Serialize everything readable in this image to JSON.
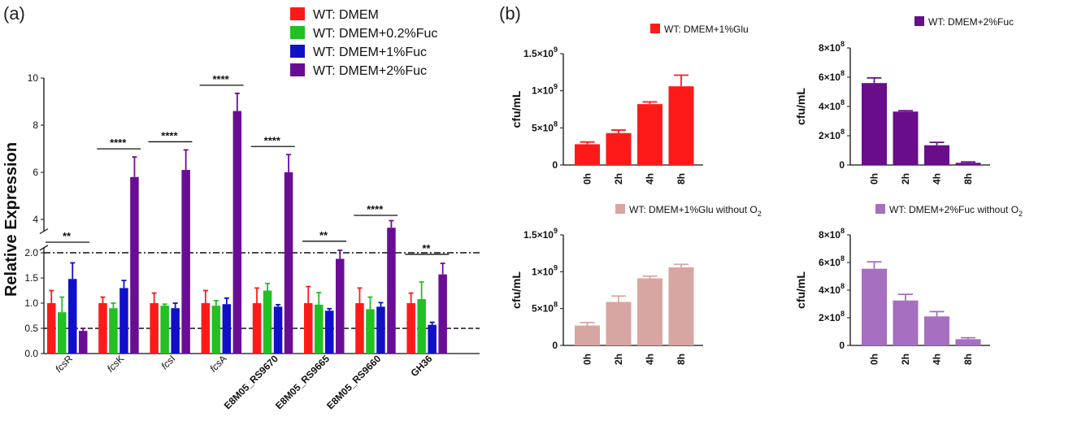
{
  "panels": {
    "a": "(a)",
    "b": "(b)"
  },
  "chart_data": [
    {
      "id": "a",
      "type": "bar",
      "ylabel": "Relative Expression",
      "axis_break": {
        "lower": [
          0,
          2.1
        ],
        "upper": [
          3.5,
          10
        ]
      },
      "yticks_lower": [
        "0.0",
        "0.5",
        "1.0",
        "1.5",
        "2.0"
      ],
      "yticks_upper": [
        "4",
        "6",
        "8",
        "10"
      ],
      "reference_lines": [
        0.5,
        2.0
      ],
      "categories": [
        {
          "prefix": "fcs",
          "suffix": "R"
        },
        {
          "prefix": "fcs",
          "suffix": "K"
        },
        {
          "prefix": "fcs",
          "suffix": "I"
        },
        {
          "prefix": "fcs",
          "suffix": "A"
        },
        {
          "prefix": "",
          "suffix": "E8M05_RS9670"
        },
        {
          "prefix": "",
          "suffix": "E8M05_RS9665"
        },
        {
          "prefix": "",
          "suffix": "E8M05_RS9660"
        },
        {
          "prefix": "",
          "suffix": "GH36"
        }
      ],
      "series": [
        {
          "name": "WT: DMEM",
          "color": "#ff1a1a",
          "values": [
            1.0,
            1.0,
            1.0,
            1.0,
            1.0,
            1.0,
            1.0,
            1.0
          ],
          "errors": [
            0.25,
            0.12,
            0.2,
            0.25,
            0.3,
            0.33,
            0.3,
            0.2
          ]
        },
        {
          "name": "WT: DMEM+0.2%Fuc",
          "color": "#22c022",
          "values": [
            0.82,
            0.9,
            0.95,
            0.95,
            1.25,
            0.97,
            0.88,
            1.08
          ],
          "errors": [
            0.3,
            0.1,
            0.03,
            0.1,
            0.14,
            0.24,
            0.24,
            0.34
          ]
        },
        {
          "name": "WT: DMEM+1%Fuc",
          "color": "#1010c8",
          "values": [
            1.48,
            1.3,
            0.9,
            0.98,
            0.93,
            0.85,
            0.93,
            0.57
          ]
        },
        {
          "name": "WT: DMEM+2%Fuc",
          "color": "#6a0d96",
          "values": [
            0.45,
            5.8,
            6.1,
            8.6,
            6.0,
            1.88,
            3.65,
            1.57
          ]
        }
      ],
      "errors_s3": [
        0.32,
        0.15,
        0.1,
        0.12,
        0.04,
        0.04,
        0.08,
        0.05
      ],
      "errors_s4": [
        0.05,
        0.85,
        0.85,
        0.75,
        0.75,
        0.17,
        0.3,
        0.22
      ],
      "significance": [
        "**",
        "****",
        "****",
        "****",
        "****",
        "**",
        "****",
        "**"
      ]
    },
    {
      "id": "b1",
      "type": "bar",
      "legend": "WT: DMEM+1%Glu",
      "color": "#ff1a1a",
      "ylabel": "cfu/mL",
      "categories": [
        "0h",
        "2h",
        "4h",
        "8h"
      ],
      "values": [
        280000000.0,
        430000000.0,
        820000000.0,
        1060000000.0
      ],
      "errors": [
        30000000.0,
        40000000.0,
        30000000.0,
        150000000.0
      ],
      "ylim": [
        0,
        1500000000.0
      ],
      "yticks": [
        {
          "m": "0",
          "e": ""
        },
        {
          "m": "5×10",
          "e": "8"
        },
        {
          "m": "1×10",
          "e": "9"
        },
        {
          "m": "1.5×10",
          "e": "9"
        }
      ]
    },
    {
      "id": "b2",
      "type": "bar",
      "legend": "WT: DMEM+2%Fuc",
      "color": "#6a0d8a",
      "ylabel": "cfu/mL",
      "categories": [
        "0h",
        "2h",
        "4h",
        "8h"
      ],
      "values": [
        560000000.0,
        365000000.0,
        135000000.0,
        15000000.0
      ],
      "errors": [
        35000000.0,
        6000000.0,
        20000000.0,
        6000000.0
      ],
      "ylim": [
        0,
        800000000.0
      ],
      "yticks": [
        {
          "m": "0",
          "e": ""
        },
        {
          "m": "2×10",
          "e": "8"
        },
        {
          "m": "4×10",
          "e": "8"
        },
        {
          "m": "6×10",
          "e": "8"
        },
        {
          "m": "8×10",
          "e": "8"
        }
      ]
    },
    {
      "id": "b3",
      "type": "bar",
      "legend": "WT: DMEM+1%Glu without O",
      "legend_sub": "2",
      "color": "#d8a6a2",
      "ylabel": "cfu/mL",
      "categories": [
        "0h",
        "2h",
        "4h",
        "8h"
      ],
      "values": [
        270000000.0,
        590000000.0,
        910000000.0,
        1060000000.0
      ],
      "errors": [
        40000000.0,
        80000000.0,
        30000000.0,
        40000000.0
      ],
      "ylim": [
        0,
        1500000000.0
      ],
      "yticks": [
        {
          "m": "0",
          "e": ""
        },
        {
          "m": "5×10",
          "e": "8"
        },
        {
          "m": "1×10",
          "e": "9"
        },
        {
          "m": "1.5×10",
          "e": "9"
        }
      ]
    },
    {
      "id": "b4",
      "type": "bar",
      "legend": "WT: DMEM+2%Fuc without O",
      "legend_sub": "2",
      "color": "#a66fc0",
      "ylabel": "cfu/mL",
      "categories": [
        "0h",
        "2h",
        "4h",
        "8h"
      ],
      "values": [
        555000000.0,
        325000000.0,
        210000000.0,
        45000000.0
      ],
      "errors": [
        50000000.0,
        45000000.0,
        35000000.0,
        10000000.0
      ],
      "ylim": [
        0,
        800000000.0
      ],
      "yticks": [
        {
          "m": "0",
          "e": ""
        },
        {
          "m": "2×10",
          "e": "8"
        },
        {
          "m": "4×10",
          "e": "8"
        },
        {
          "m": "6×10",
          "e": "8"
        },
        {
          "m": "8×10",
          "e": "8"
        }
      ]
    }
  ]
}
